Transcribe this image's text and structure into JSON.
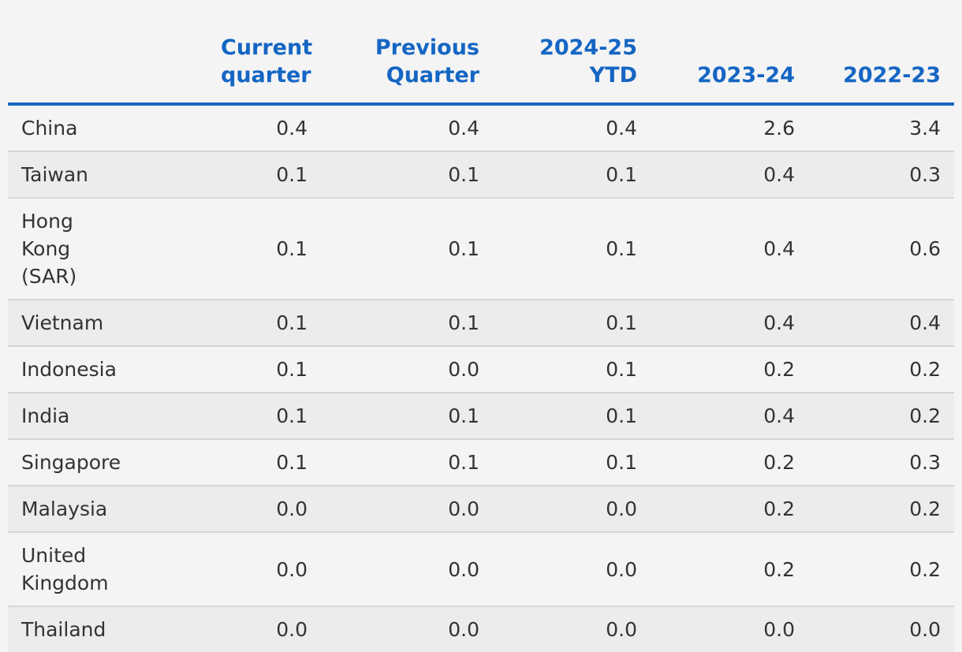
{
  "chart_data": {
    "type": "table",
    "columns": [
      "",
      "Current quarter",
      "Previous Quarter",
      "2024-25 YTD",
      "2023-24",
      "2022-23"
    ],
    "rows": [
      {
        "label": "China",
        "values": [
          "0.4",
          "0.4",
          "0.4",
          "2.6",
          "3.4"
        ]
      },
      {
        "label": "Taiwan",
        "values": [
          "0.1",
          "0.1",
          "0.1",
          "0.4",
          "0.3"
        ]
      },
      {
        "label": "Hong Kong (SAR)",
        "values": [
          "0.1",
          "0.1",
          "0.1",
          "0.4",
          "0.6"
        ]
      },
      {
        "label": "Vietnam",
        "values": [
          "0.1",
          "0.1",
          "0.1",
          "0.4",
          "0.4"
        ]
      },
      {
        "label": "Indonesia",
        "values": [
          "0.1",
          "0.0",
          "0.1",
          "0.2",
          "0.2"
        ]
      },
      {
        "label": "India",
        "values": [
          "0.1",
          "0.1",
          "0.1",
          "0.4",
          "0.2"
        ]
      },
      {
        "label": "Singapore",
        "values": [
          "0.1",
          "0.1",
          "0.1",
          "0.2",
          "0.3"
        ]
      },
      {
        "label": "Malaysia",
        "values": [
          "0.0",
          "0.0",
          "0.0",
          "0.2",
          "0.2"
        ]
      },
      {
        "label": "United Kingdom",
        "values": [
          "0.0",
          "0.0",
          "0.0",
          "0.2",
          "0.2"
        ]
      },
      {
        "label": "Thailand",
        "values": [
          "0.0",
          "0.0",
          "0.0",
          "0.0",
          "0.0"
        ]
      }
    ]
  },
  "colors": {
    "header": "#1566c4",
    "text": "#333333",
    "row_alt": "#ececec",
    "background": "#f4f4f4"
  }
}
